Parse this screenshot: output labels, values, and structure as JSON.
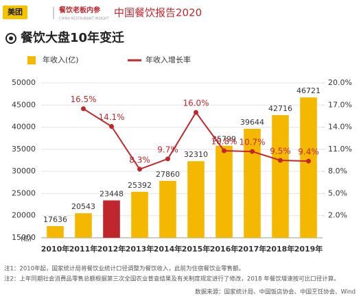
{
  "header": {
    "brand": "美团",
    "partner": "餐饮老板内参",
    "partner_sub": "CHINA RESTAURANT INSIGHT",
    "report": "中国餐饮报告2020"
  },
  "chart_data": {
    "type": "bar",
    "title": "餐饮大盘10年变迁",
    "y_unit": "(亿)",
    "categories": [
      "2010年",
      "2011年",
      "2012年",
      "2013年",
      "2014年",
      "2015年",
      "2016年",
      "2017年",
      "2018年",
      "2019年"
    ],
    "series": [
      {
        "name": "年收入(亿)",
        "type": "bar",
        "color": "#f5b800",
        "colors": [
          "#f5b800",
          "#f5b800",
          "#c0272d",
          "#f5b800",
          "#f5b800",
          "#f5b800",
          "#f5b800",
          "#f5b800",
          "#f5b800",
          "#f5b800"
        ],
        "values": [
          17636,
          20543,
          23448,
          25392,
          27860,
          32310,
          35799,
          39644,
          42716,
          46721
        ]
      },
      {
        "name": "年收入增长率",
        "type": "line",
        "axis": "y2",
        "color": "#c0272d",
        "values": [
          null,
          16.5,
          14.1,
          8.3,
          9.7,
          16.0,
          10.8,
          10.7,
          9.5,
          9.4
        ],
        "value_labels": [
          null,
          "16.5%",
          "14.1%",
          "8.3%",
          "9.7%",
          "16.0%",
          "10.8%",
          "10.7%",
          "9.5%",
          "9.4%"
        ]
      }
    ],
    "ylim": [
      15000,
      50000
    ],
    "yticks": [
      15000,
      20000,
      25000,
      30000,
      35000,
      40000,
      45000,
      50000
    ],
    "y2lim": [
      -1,
      20
    ],
    "y2ticks": [
      {
        "value": 2,
        "label": "2.0%"
      },
      {
        "value": 5,
        "label": "5.0%"
      },
      {
        "value": 8,
        "label": "8.0%"
      },
      {
        "value": 11,
        "label": "11.0%"
      },
      {
        "value": 14,
        "label": "14.0%"
      },
      {
        "value": 17,
        "label": "17.0%"
      },
      {
        "value": 20,
        "label": "20.0%"
      }
    ],
    "grid": true,
    "notes": [
      "注1：2010年起，国家统计局将餐饮业统计口径调整为餐饮收入，此前为住宿餐饮业零售额。",
      "注2：上年同期社会消费品零售总额根据第三次全国农业普查结果及有关制度规定进行了修改，2018 年餐饮增速按可比口径计算。"
    ],
    "source": "数据来源：国家统计局、中国饭店协会、中国烹饪协会、Wind"
  }
}
